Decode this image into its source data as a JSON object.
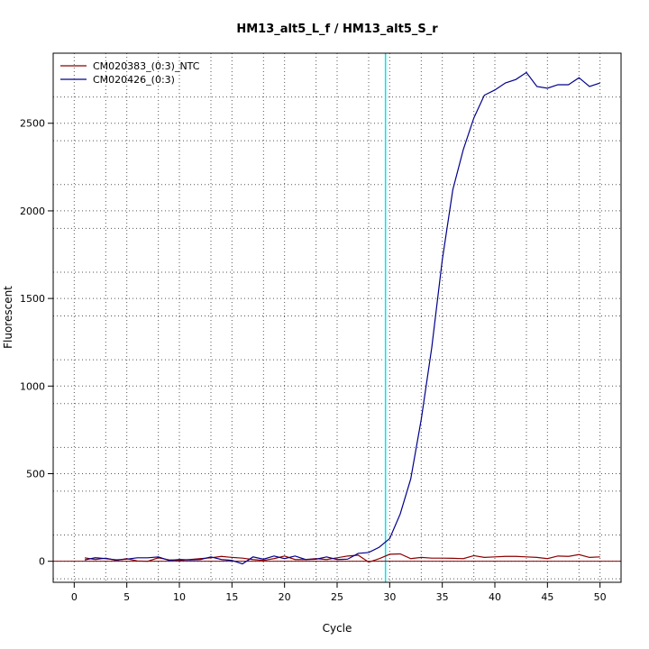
{
  "chart_data": {
    "type": "line",
    "title": "HM13_alt5_L_f / HM13_alt5_S_r",
    "xlabel": "Cycle",
    "ylabel": "Fluorescent",
    "xlim": [
      -2,
      52
    ],
    "ylim": [
      -120,
      2900
    ],
    "x_ticks": [
      0,
      5,
      10,
      15,
      20,
      25,
      30,
      35,
      40,
      45,
      50
    ],
    "y_ticks": [
      0,
      500,
      1000,
      1500,
      2000,
      2500
    ],
    "x_minor_grid": [
      3,
      8,
      13,
      18,
      23,
      28,
      33,
      38,
      43,
      48
    ],
    "y_minor_grid": [
      -100,
      150,
      400,
      650,
      900,
      1150,
      1400,
      1650,
      1900,
      2150,
      2400,
      2650
    ],
    "grid": true,
    "legend_position": "top-left",
    "threshold_line": {
      "x": 29.6,
      "color": "#00e5ee"
    },
    "baseline": {
      "y": 0,
      "color": "#8b0000"
    },
    "x": [
      1,
      2,
      3,
      4,
      5,
      6,
      7,
      8,
      9,
      10,
      11,
      12,
      13,
      14,
      15,
      16,
      17,
      18,
      19,
      20,
      21,
      22,
      23,
      24,
      25,
      26,
      27,
      28,
      29,
      30,
      31,
      32,
      33,
      34,
      35,
      36,
      37,
      38,
      39,
      40,
      41,
      42,
      43,
      44,
      45,
      46,
      47,
      48,
      49,
      50
    ],
    "series": [
      {
        "name": "CM020383_(0:3)_NTC",
        "color": "#8b0000",
        "values": [
          20,
          10,
          18,
          5,
          15,
          2,
          0,
          20,
          8,
          5,
          10,
          15,
          20,
          28,
          22,
          18,
          10,
          5,
          15,
          30,
          10,
          10,
          15,
          10,
          20,
          30,
          35,
          -5,
          15,
          40,
          42,
          15,
          22,
          18,
          18,
          17,
          15,
          32,
          22,
          25,
          28,
          28,
          25,
          22,
          15,
          30,
          28,
          38,
          22,
          25
        ]
      },
      {
        "name": "CM020426_(0:3)",
        "color": "#00008b",
        "values": [
          8,
          20,
          15,
          8,
          12,
          20,
          20,
          25,
          5,
          10,
          8,
          10,
          25,
          10,
          5,
          -15,
          25,
          12,
          30,
          15,
          30,
          10,
          12,
          25,
          10,
          12,
          45,
          50,
          80,
          130,
          270,
          470,
          810,
          1220,
          1720,
          2120,
          2350,
          2530,
          2660,
          2690,
          2730,
          2750,
          2790,
          2710,
          2700,
          2720,
          2720,
          2760,
          2710,
          2730
        ]
      }
    ]
  }
}
